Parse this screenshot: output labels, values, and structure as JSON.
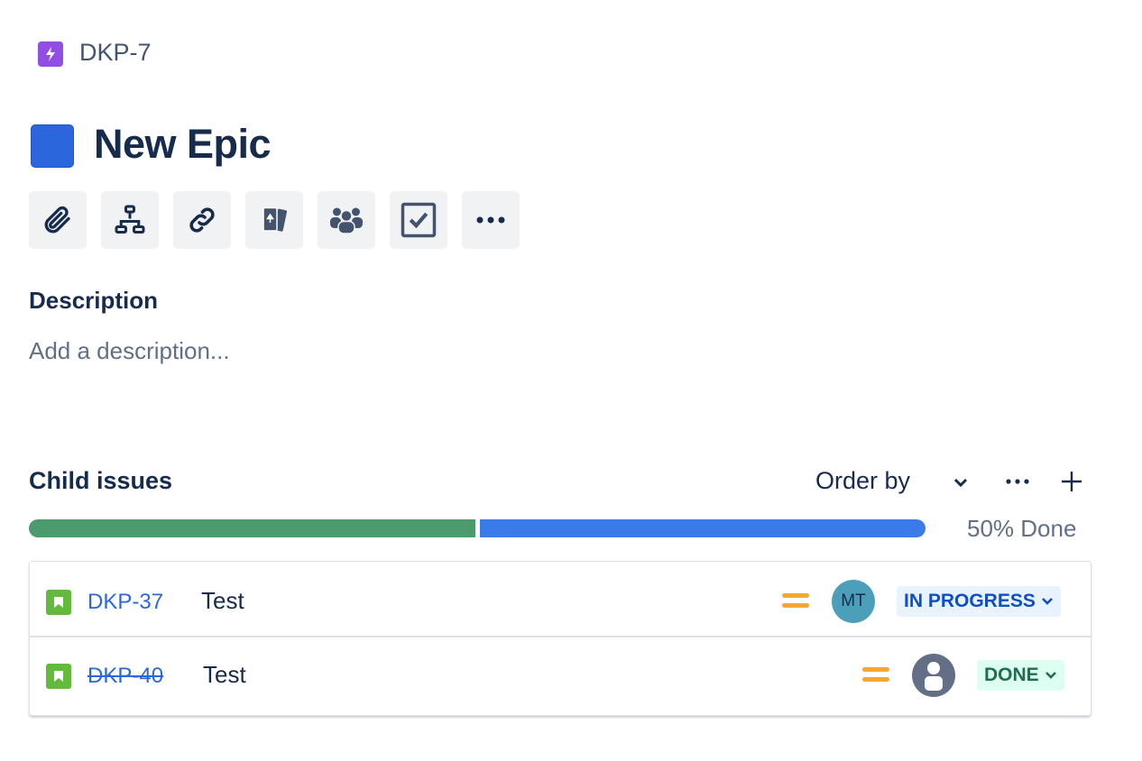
{
  "breadcrumb": {
    "parent_key": "DKP-7",
    "icon": "lightning-icon",
    "color": "#904ee2"
  },
  "issue": {
    "title": "New Epic",
    "color": "#2c66dd"
  },
  "toolbar": [
    "paperclip-icon",
    "hierarchy-icon",
    "link-icon",
    "cards-icon",
    "people-icon",
    "checkbox-icon",
    "more-icon"
  ],
  "description": {
    "label": "Description",
    "placeholder": "Add a description..."
  },
  "child_issues": {
    "label": "Child issues",
    "order_by": "Order by",
    "progress": {
      "done_percent": 50,
      "label": "50% Done",
      "done_color": "#4c9b6e",
      "remaining_color": "#3b7be9"
    },
    "items": [
      {
        "key": "DKP-37",
        "summary": "Test",
        "priority": "medium",
        "assignee": "MT",
        "status": "IN PROGRESS",
        "done": false
      },
      {
        "key": "DKP-40",
        "summary": "Test",
        "priority": "medium",
        "assignee": "",
        "status": "DONE",
        "done": true
      }
    ]
  }
}
